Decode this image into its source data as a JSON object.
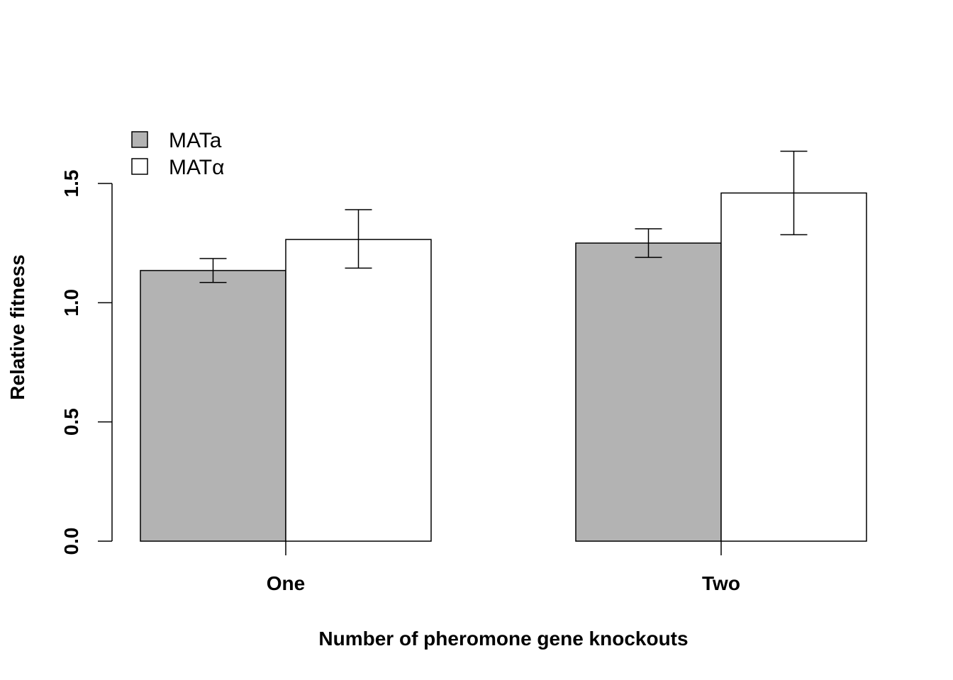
{
  "chart_data": {
    "type": "bar",
    "categories": [
      "One",
      "Two"
    ],
    "series": [
      {
        "name": "MATa",
        "values": [
          1.135,
          1.25
        ],
        "error_low": [
          1.085,
          1.19
        ],
        "error_high": [
          1.185,
          1.31
        ],
        "color": "#b3b3b3"
      },
      {
        "name": "MATα",
        "values": [
          1.265,
          1.46
        ],
        "error_low": [
          1.145,
          1.285
        ],
        "error_high": [
          1.39,
          1.635
        ],
        "color": "#ffffff"
      }
    ],
    "xlabel": "Number of pheromone gene knockouts",
    "ylabel": "Relative fitness",
    "ylim": [
      0,
      1.5
    ],
    "yticks": [
      "0.0",
      "0.5",
      "1.0",
      "1.5"
    ],
    "ytick_values": [
      0,
      0.5,
      1.0,
      1.5
    ],
    "grid": false,
    "legend_position": "top-left"
  }
}
